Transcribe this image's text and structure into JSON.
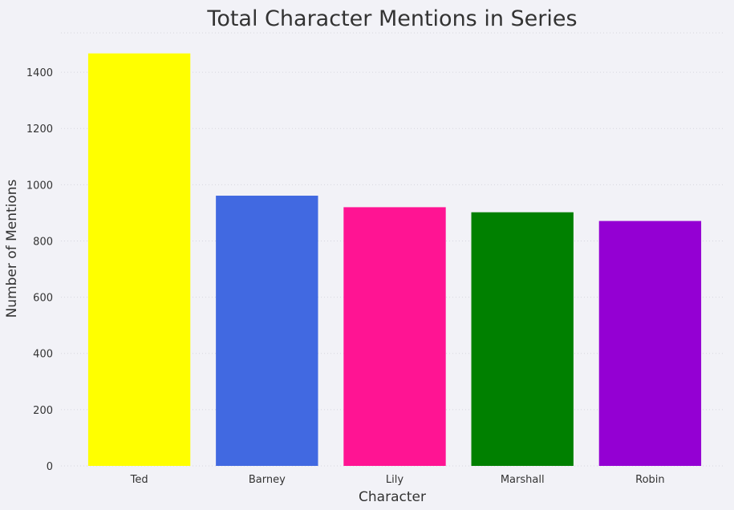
{
  "chart_data": {
    "type": "bar",
    "title": "Total Character Mentions in Series",
    "xlabel": "Character",
    "ylabel": "Number of Mentions",
    "categories": [
      "Ted",
      "Barney",
      "Lily",
      "Marshall",
      "Robin"
    ],
    "values": [
      1467,
      961,
      920,
      902,
      871
    ],
    "colors": [
      "#ffff00",
      "#4169e1",
      "#ff1493",
      "#008000",
      "#9400d3"
    ],
    "yticks": [
      0,
      200,
      400,
      600,
      800,
      1000,
      1200,
      1400
    ],
    "ylim": [
      0,
      1540
    ],
    "grid": true,
    "legend": "none"
  }
}
